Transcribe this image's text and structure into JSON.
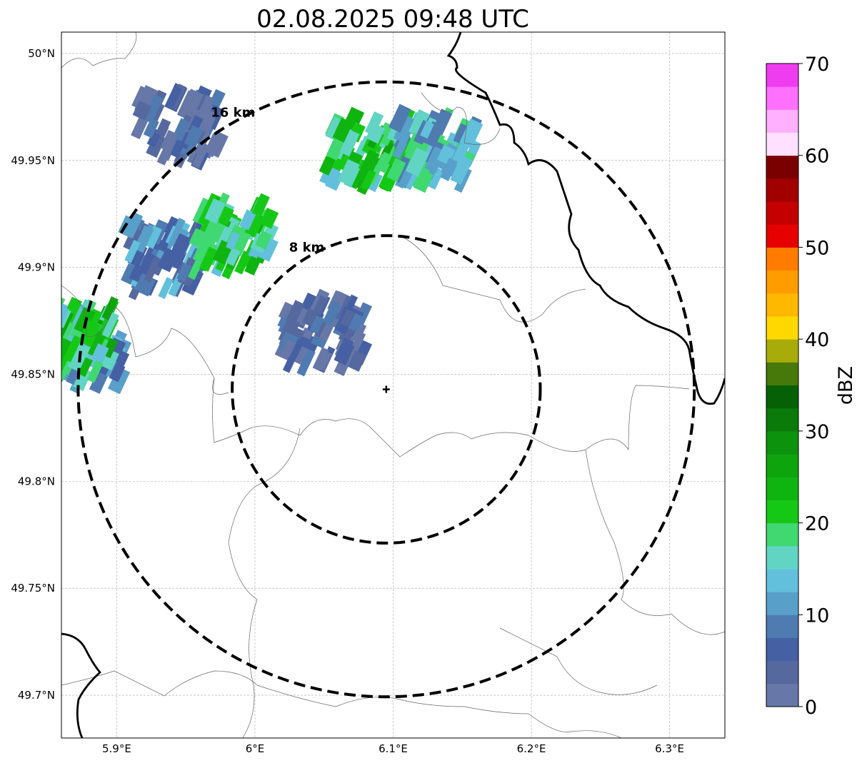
{
  "title": "02.08.2025 09:48 UTC",
  "map": {
    "lon_range": [
      5.86,
      6.34
    ],
    "lat_range": [
      49.68,
      50.01
    ],
    "x_ticks": [
      {
        "lon": 5.9,
        "label": "5.9°E"
      },
      {
        "lon": 6.0,
        "label": "6°E"
      },
      {
        "lon": 6.1,
        "label": "6.1°E"
      },
      {
        "lon": 6.2,
        "label": "6.2°E"
      },
      {
        "lon": 6.3,
        "label": "6.3°E"
      }
    ],
    "y_ticks": [
      {
        "lat": 50.0,
        "label": "50°N"
      },
      {
        "lat": 49.95,
        "label": "49.95°N"
      },
      {
        "lat": 49.9,
        "label": "49.9°N"
      },
      {
        "lat": 49.85,
        "label": "49.85°N"
      },
      {
        "lat": 49.8,
        "label": "49.8°N"
      },
      {
        "lat": 49.75,
        "label": "49.75°N"
      },
      {
        "lat": 49.7,
        "label": "49.7°N"
      }
    ],
    "radar_site": {
      "lon": 6.095,
      "lat": 49.843
    },
    "range_rings": [
      {
        "km": 8,
        "label": "8 km"
      },
      {
        "km": 16,
        "label": "16 km"
      }
    ],
    "grid": true
  },
  "colorbar": {
    "label": "dBZ",
    "min": 0,
    "max": 70,
    "tick_labels": [
      "0",
      "10",
      "20",
      "30",
      "40",
      "50",
      "60",
      "70"
    ],
    "colors": [
      "#6677a8",
      "#56699f",
      "#4560a3",
      "#4f7bb0",
      "#58a0c9",
      "#62c0dc",
      "#62d4c4",
      "#40d870",
      "#16c816",
      "#10b410",
      "#0ea40e",
      "#0c920c",
      "#0a7a0a",
      "#066006",
      "#46780a",
      "#a8ac0a",
      "#ffd800",
      "#ffb800",
      "#ff9c00",
      "#ff7c00",
      "#e60000",
      "#c40000",
      "#a20000",
      "#7a0000",
      "#ffe0ff",
      "#ffb0ff",
      "#ff70ff",
      "#f03cf0"
    ]
  },
  "precip_cells": [
    {
      "name": "cell-west-edge",
      "lon": 5.875,
      "lat": 49.86,
      "dbz": 12
    },
    {
      "name": "cell-west-core",
      "lon": 5.868,
      "lat": 49.866,
      "dbz": 21
    },
    {
      "name": "cell-northwest-band",
      "lon": 5.935,
      "lat": 49.905,
      "dbz": 10
    },
    {
      "name": "cell-northwest-cap",
      "lon": 5.945,
      "lat": 49.965,
      "dbz": 4
    },
    {
      "name": "cell-north-central",
      "lon": 5.985,
      "lat": 49.915,
      "dbz": 20
    },
    {
      "name": "cell-center-small",
      "lon": 6.05,
      "lat": 49.87,
      "dbz": 5
    },
    {
      "name": "cell-northeast-main",
      "lon": 6.08,
      "lat": 49.955,
      "dbz": 22
    },
    {
      "name": "cell-northeast-east",
      "lon": 6.13,
      "lat": 49.955,
      "dbz": 15
    }
  ]
}
